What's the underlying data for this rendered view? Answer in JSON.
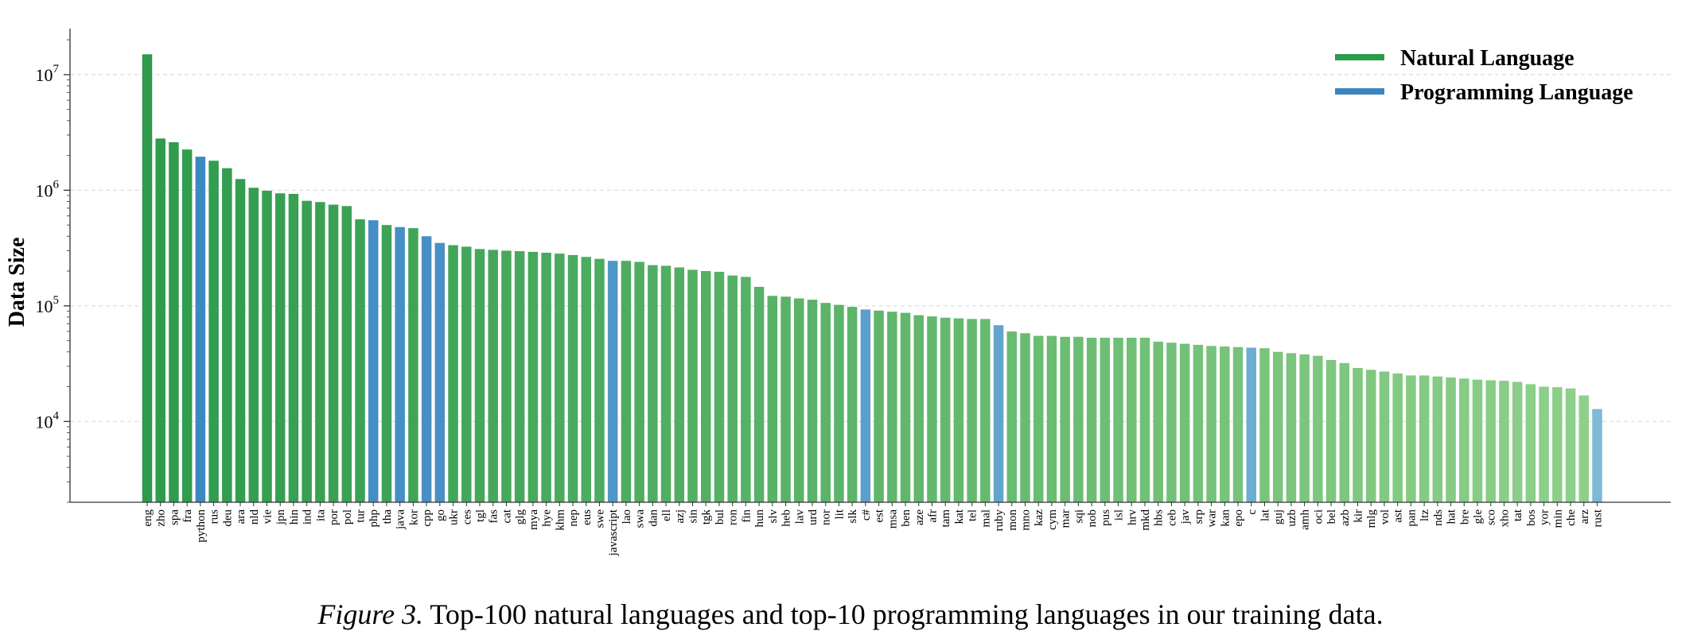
{
  "caption": {
    "figure": "Figure 3.",
    "text": "Top-100 natural languages and top-10 programming languages in our training data."
  },
  "colors": {
    "natural": "#2e9a4c",
    "natural_light": "#8fd18a",
    "programming": "#3b86c0",
    "programming_light": "#7cbad6",
    "grid": "#dddddd"
  },
  "chart_data": {
    "type": "bar",
    "ylabel": "Data Size",
    "yscale": "log",
    "ylim": [
      2000,
      25000000
    ],
    "yticks": [
      {
        "value": 10000,
        "base": "10",
        "exp": "4"
      },
      {
        "value": 100000,
        "base": "10",
        "exp": "5"
      },
      {
        "value": 1000000,
        "base": "10",
        "exp": "6"
      },
      {
        "value": 10000000,
        "base": "10",
        "exp": "7"
      }
    ],
    "grid": true,
    "legend": {
      "position": "top-right",
      "entries": [
        {
          "label": "Natural Language",
          "color": "#2e9a4c"
        },
        {
          "label": "Programming Language",
          "color": "#3b86c0"
        }
      ]
    },
    "categories": [
      "eng",
      "zho",
      "spa",
      "fra",
      "python",
      "rus",
      "deu",
      "ara",
      "nld",
      "vie",
      "jpn",
      "hin",
      "ind",
      "ita",
      "por",
      "pol",
      "tur",
      "php",
      "tha",
      "java",
      "kor",
      "cpp",
      "go",
      "ukr",
      "ces",
      "tgl",
      "fas",
      "cat",
      "glg",
      "mya",
      "hye",
      "khm",
      "nep",
      "eus",
      "swe",
      "javascript",
      "lao",
      "swa",
      "dan",
      "ell",
      "azj",
      "sin",
      "tgk",
      "bul",
      "ron",
      "fin",
      "hun",
      "slv",
      "heb",
      "lav",
      "urd",
      "nor",
      "lit",
      "slk",
      "c#",
      "est",
      "msa",
      "ben",
      "aze",
      "afr",
      "tam",
      "kat",
      "tel",
      "mal",
      "ruby",
      "mon",
      "mno",
      "kaz",
      "cym",
      "mar",
      "sqi",
      "nob",
      "pus",
      "isl",
      "hrv",
      "mkd",
      "hbs",
      "ceb",
      "jav",
      "srp",
      "war",
      "kan",
      "epo",
      "c",
      "lat",
      "guj",
      "uzb",
      "amh",
      "oci",
      "bel",
      "azb",
      "kir",
      "mlg",
      "vol",
      "ast",
      "pan",
      "ltz",
      "nds",
      "hat",
      "bre",
      "gle",
      "sco",
      "xho",
      "tat",
      "bos",
      "yor",
      "min",
      "che",
      "arz",
      "rust"
    ],
    "programming": [
      "python",
      "php",
      "java",
      "cpp",
      "go",
      "javascript",
      "c#",
      "ruby",
      "c",
      "rust"
    ],
    "values": [
      15000000,
      2800000,
      2600000,
      2250000,
      1950000,
      1800000,
      1550000,
      1250000,
      1050000,
      990000,
      940000,
      930000,
      810000,
      790000,
      750000,
      730000,
      560000,
      550000,
      500000,
      480000,
      470000,
      400000,
      350000,
      335000,
      325000,
      310000,
      305000,
      300000,
      297000,
      293000,
      288000,
      283000,
      275000,
      265000,
      255000,
      245000,
      245000,
      240000,
      225000,
      222000,
      215000,
      205000,
      200000,
      197000,
      183000,
      178000,
      146000,
      122000,
      120000,
      116000,
      113000,
      106000,
      102000,
      98000,
      93000,
      91000,
      89000,
      87000,
      83000,
      81000,
      79000,
      78000,
      77000,
      77000,
      68000,
      60000,
      58000,
      55000,
      55000,
      54000,
      54000,
      53000,
      53000,
      53000,
      53000,
      53000,
      49000,
      48000,
      47000,
      46000,
      45000,
      44500,
      44000,
      43500,
      43000,
      40000,
      39000,
      38000,
      37000,
      34000,
      32000,
      29000,
      28000,
      27000,
      26000,
      25000,
      25000,
      24500,
      24000,
      23500,
      23000,
      22700,
      22500,
      22000,
      21000,
      20000,
      19800,
      19300,
      16800,
      12800
    ]
  }
}
